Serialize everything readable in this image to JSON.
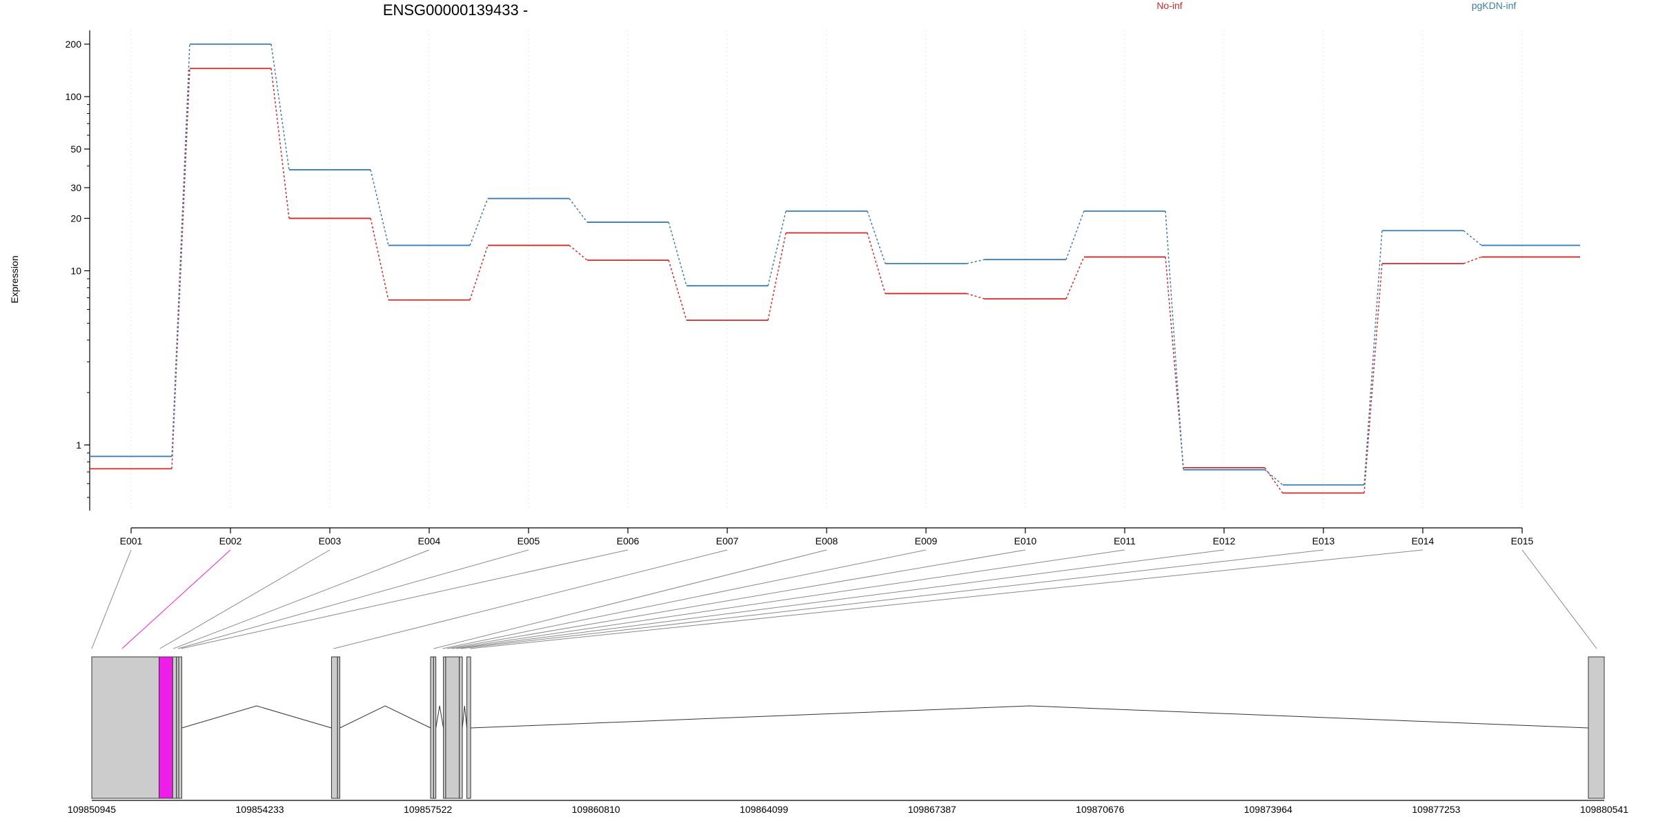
{
  "chart_data": {
    "type": "line",
    "title": "ENSG00000139433 -",
    "ylabel": "Expression",
    "yscale": "log",
    "ylim": [
      0.42,
      240
    ],
    "yticks": [
      1,
      10,
      20,
      30,
      50,
      100,
      200
    ],
    "categories": [
      "E001",
      "E002",
      "E003",
      "E004",
      "E005",
      "E006",
      "E007",
      "E008",
      "E009",
      "E010",
      "E011",
      "E012",
      "E013",
      "E014",
      "E015"
    ],
    "series": [
      {
        "name": "No-inf",
        "color": "#d62728",
        "values": [
          0.73,
          145,
          20,
          6.8,
          14,
          11.5,
          5.2,
          16.5,
          7.4,
          6.9,
          12,
          0.74,
          0.53,
          11,
          12
        ]
      },
      {
        "name": "pgKDN-inf",
        "color": "#377eb8",
        "values": [
          0.86,
          200,
          38,
          14,
          26,
          19,
          8.2,
          22,
          11,
          11.6,
          22,
          0.72,
          0.59,
          17,
          14
        ]
      }
    ],
    "gene_model": {
      "coordinate_ticks": [
        "109850945",
        "109854233",
        "109857522",
        "109860810",
        "109864099",
        "109867387",
        "109870676",
        "109873964",
        "109877253",
        "109880541"
      ],
      "highlight_exon": "E002",
      "highlight_color": "#ee1de9",
      "exon_color": "#cccccc"
    }
  }
}
